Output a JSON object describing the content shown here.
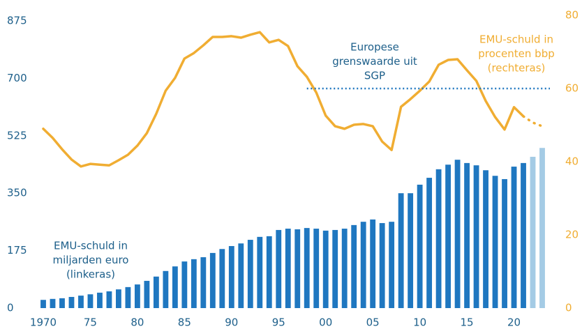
{
  "chart_data": {
    "type": "bar_line",
    "x": [
      1970,
      1971,
      1972,
      1973,
      1974,
      1975,
      1976,
      1977,
      1978,
      1979,
      1980,
      1981,
      1982,
      1983,
      1984,
      1985,
      1986,
      1987,
      1988,
      1989,
      1990,
      1991,
      1992,
      1993,
      1994,
      1995,
      1996,
      1997,
      1998,
      1999,
      2000,
      2001,
      2002,
      2003,
      2004,
      2005,
      2006,
      2007,
      2008,
      2009,
      2010,
      2011,
      2012,
      2013,
      2014,
      2015,
      2016,
      2017,
      2018,
      2019,
      2020,
      2021,
      2022,
      2023
    ],
    "xlim": [
      1970,
      2023
    ],
    "xticks": [
      1970,
      {
        "value": 1975,
        "label": "75"
      },
      {
        "value": 1980,
        "label": "80"
      },
      {
        "value": 1985,
        "label": "85"
      },
      {
        "value": 1990,
        "label": "90"
      },
      {
        "value": 1995,
        "label": "95"
      },
      {
        "value": 2000,
        "label": "00"
      },
      {
        "value": 2005,
        "label": "05"
      },
      {
        "value": 2010,
        "label": "10"
      },
      {
        "value": 2015,
        "label": "15"
      },
      {
        "value": 2020,
        "label": "20"
      }
    ],
    "ylim": [
      0,
      875
    ],
    "yticks": [
      0,
      175,
      350,
      525,
      700,
      875
    ],
    "y2lim": [
      0,
      80
    ],
    "y2ticks": [
      0,
      20,
      40,
      60,
      80
    ],
    "y_color": "#1d5f8a",
    "y2_color": "#f0ad32",
    "series": [
      {
        "name": [
          "EMU-schuld in",
          "miljarden euro",
          "(linkeras)"
        ],
        "type": "bar",
        "axis": "y",
        "color": "#1f77c0",
        "colors": [
          "#1f77c0",
          "#1f77c0",
          "#1f77c0",
          "#1f77c0",
          "#1f77c0",
          "#1f77c0",
          "#1f77c0",
          "#1f77c0",
          "#1f77c0",
          "#1f77c0",
          "#1f77c0",
          "#1f77c0",
          "#1f77c0",
          "#1f77c0",
          "#1f77c0",
          "#1f77c0",
          "#1f77c0",
          "#1f77c0",
          "#1f77c0",
          "#1f77c0",
          "#1f77c0",
          "#1f77c0",
          "#1f77c0",
          "#1f77c0",
          "#1f77c0",
          "#1f77c0",
          "#1f77c0",
          "#1f77c0",
          "#1f77c0",
          "#1f77c0",
          "#1f77c0",
          "#1f77c0",
          "#1f77c0",
          "#1f77c0",
          "#1f77c0",
          "#1f77c0",
          "#1f77c0",
          "#1f77c0",
          "#1f77c0",
          "#1f77c0",
          "#1f77c0",
          "#1f77c0",
          "#1f77c0",
          "#1f77c0",
          "#1f77c0",
          "#1f77c0",
          "#1f77c0",
          "#1f77c0",
          "#1f77c0",
          "#1f77c0",
          "#1f77c0",
          "#1f77c0",
          "#a4cbe5",
          "#a4cbe5"
        ],
        "values": [
          25,
          28,
          30,
          34,
          38,
          42,
          47,
          51,
          57,
          64,
          72,
          83,
          96,
          113,
          127,
          142,
          149,
          155,
          168,
          180,
          189,
          197,
          208,
          217,
          219,
          238,
          242,
          240,
          244,
          242,
          236,
          238,
          242,
          253,
          263,
          270,
          259,
          263,
          350,
          350,
          376,
          397,
          423,
          437,
          452,
          442,
          435,
          420,
          403,
          393,
          431,
          442,
          461,
          488
        ]
      },
      {
        "name": [
          "EMU-schuld in",
          "procenten bbp",
          "(rechteras)"
        ],
        "type": "line",
        "axis": "y2",
        "color": "#f0ad32",
        "styles": [
          "solid",
          "solid",
          "solid",
          "solid",
          "solid",
          "solid",
          "solid",
          "solid",
          "solid",
          "solid",
          "solid",
          "solid",
          "solid",
          "solid",
          "solid",
          "solid",
          "solid",
          "solid",
          "solid",
          "solid",
          "solid",
          "solid",
          "solid",
          "solid",
          "solid",
          "solid",
          "solid",
          "solid",
          "solid",
          "solid",
          "solid",
          "solid",
          "solid",
          "solid",
          "solid",
          "solid",
          "solid",
          "solid",
          "solid",
          "solid",
          "solid",
          "solid",
          "solid",
          "solid",
          "solid",
          "solid",
          "solid",
          "solid",
          "solid",
          "solid",
          "solid",
          "solid",
          "dotted",
          "dotted"
        ],
        "values": [
          49,
          46.5,
          43.4,
          40.6,
          38.7,
          39.4,
          39.2,
          39,
          40.4,
          41.9,
          44.4,
          47.8,
          53.1,
          59.4,
          62.9,
          68.2,
          69.7,
          71.8,
          74.1,
          74.1,
          74.3,
          73.9,
          74.7,
          75.4,
          72.6,
          73.3,
          71.6,
          66.1,
          63.2,
          58.9,
          52.6,
          49.7,
          49,
          50.1,
          50.3,
          49.7,
          45.5,
          43.2,
          55,
          57.1,
          59.4,
          61.9,
          66.5,
          67.8,
          68,
          65,
          62.1,
          56.6,
          52.2,
          48.8,
          54.9,
          52.4,
          50.7,
          49.7
        ]
      }
    ],
    "reference_line": {
      "value": 60,
      "axis": "y2",
      "from": 1998,
      "color": "#1f77c0",
      "label": [
        "Europese",
        "grenswaarde uit",
        "SGP"
      ]
    }
  }
}
